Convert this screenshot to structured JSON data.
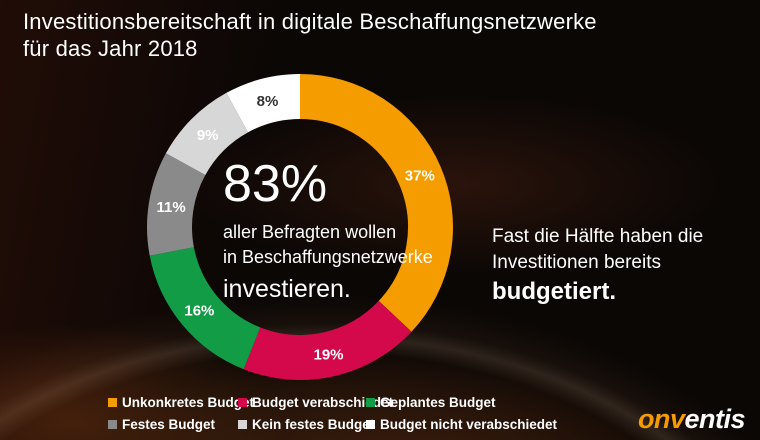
{
  "title": {
    "line1": "Investitionsbereitschaft in digitale Beschaffungsnetzwerke",
    "line2": "für das Jahr 2018"
  },
  "chart_data": {
    "type": "pie",
    "donut": true,
    "start_angle_deg": 0,
    "unit": "%",
    "slices": [
      {
        "label": "Unkonkretes Budget",
        "value": 37,
        "color": "#F59C00",
        "label_color": "#FFFFFF"
      },
      {
        "label": "Budget verabschiedet",
        "value": 19,
        "color": "#D3094C",
        "label_color": "#FFFFFF"
      },
      {
        "label": "Geplantes Budget",
        "value": 16,
        "color": "#119C45",
        "label_color": "#FFFFFF"
      },
      {
        "label": "Festes Budget",
        "value": 11,
        "color": "#8A8A8A",
        "label_color": "#FFFFFF"
      },
      {
        "label": "Kein festes Budget",
        "value": 9,
        "color": "#D7D7D7",
        "label_color": "#FFFFFF"
      },
      {
        "label": "Budget nicht verabschiedet",
        "value": 8,
        "color": "#FFFFFF",
        "label_color": "#333333"
      }
    ],
    "center_text": {
      "headline": "83%",
      "line1": "aller Befragten wollen",
      "line2": "in Beschaffungsnetzwerke",
      "line3": "investieren."
    },
    "legend_position": "bottom"
  },
  "callout": {
    "line1": "Fast die Hälfte haben die",
    "line2": "Investitionen bereits",
    "emphasis": "budgetiert",
    "suffix": "."
  },
  "logo": {
    "prefix": "on",
    "check": "v",
    "suffix": "entis"
  },
  "colors": {
    "accent_orange": "#F59C00",
    "background": "#0B0705"
  }
}
